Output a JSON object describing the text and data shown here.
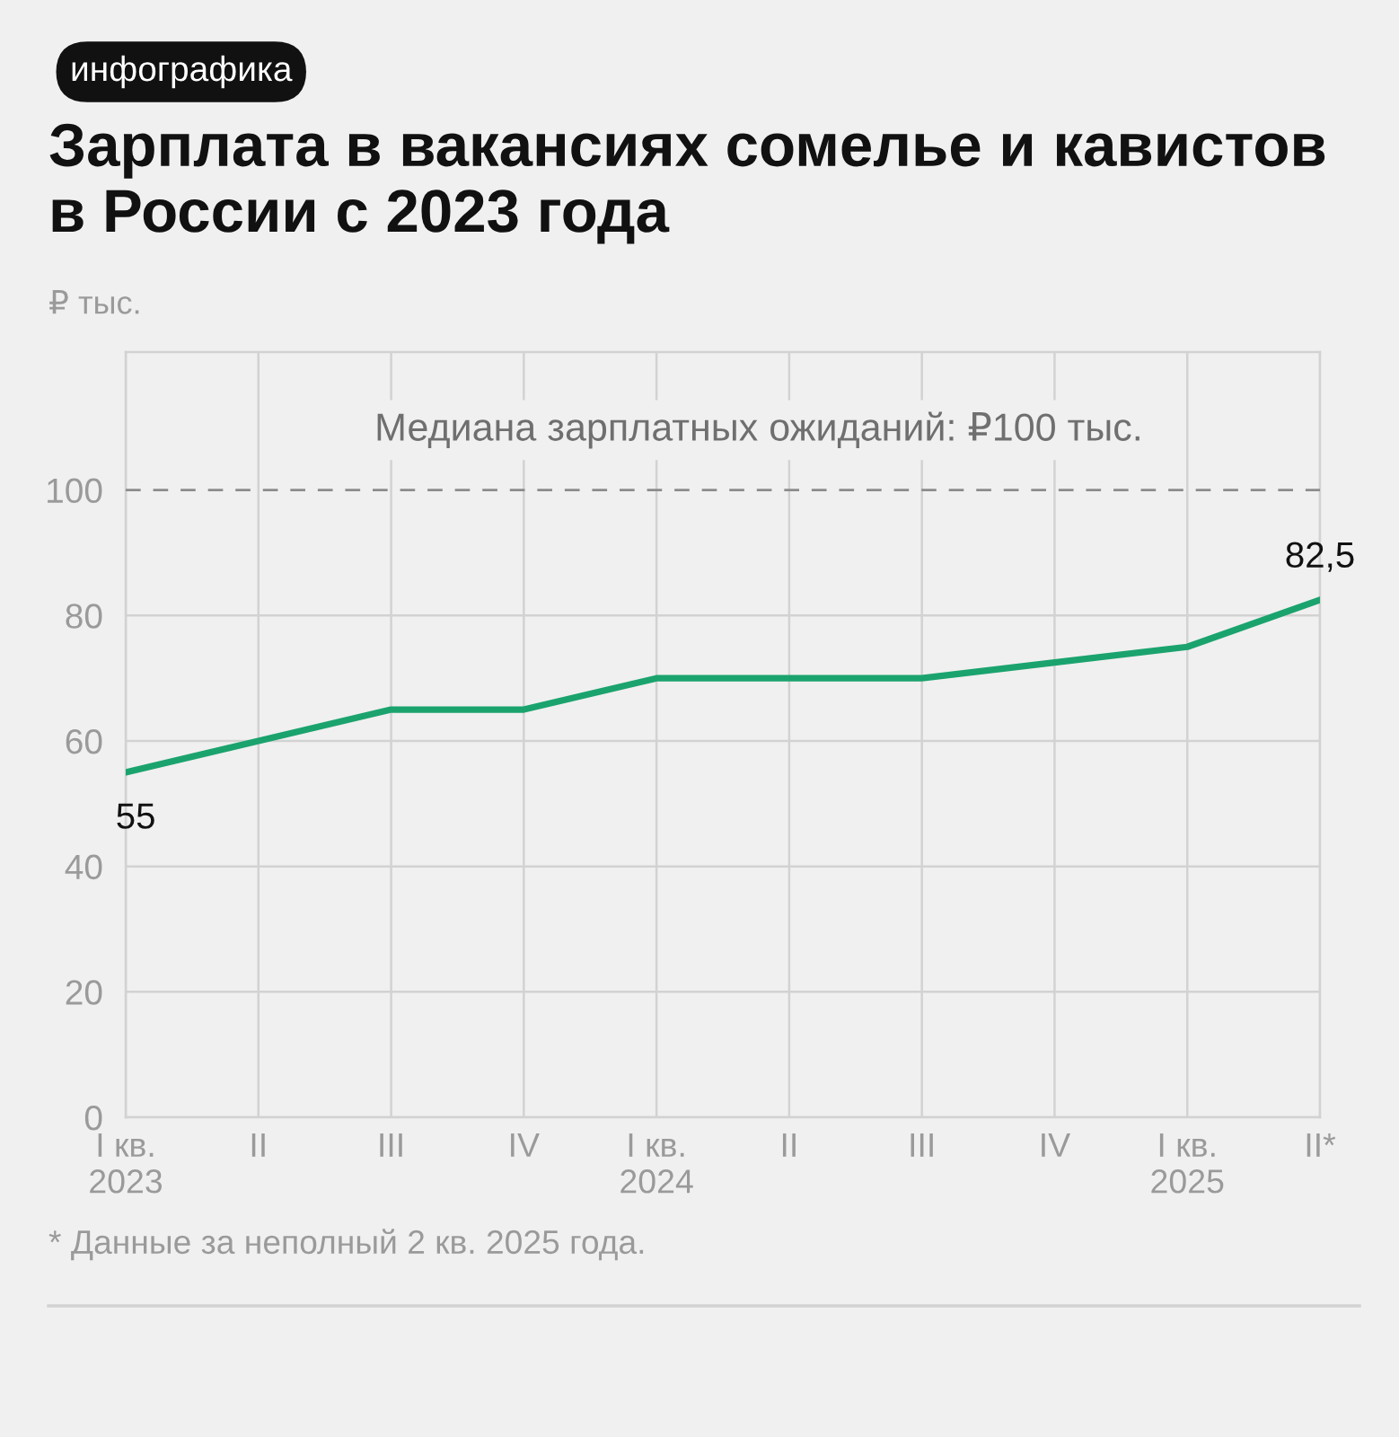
{
  "chart_data": {
    "type": "line",
    "title": "Зарплата в вакансиях сомелье и кавистов\nв России с 2023 года",
    "ylabel": "₽ тыс.",
    "categories": [
      "I кв.\n2023",
      "II",
      "III",
      "IV",
      "I кв.\n2024",
      "II",
      "III",
      "IV",
      "I кв.\n2025",
      "II*"
    ],
    "series": [
      {
        "color": "#1ba36e",
        "values": [
          55,
          60,
          65,
          65,
          70,
          70,
          70,
          72.5,
          75,
          82.5
        ],
        "value_labels": [
          "55",
          null,
          null,
          null,
          null,
          null,
          null,
          null,
          null,
          "82,5"
        ]
      }
    ],
    "ylim": [
      0,
      122
    ],
    "yticks": [
      0,
      20,
      40,
      60,
      80,
      100
    ],
    "grid": true,
    "line_style": "solid",
    "ref_lines": [
      {
        "axis": "y",
        "value": 100,
        "label": "Медиана зарплатных ожиданий: ₽100 тыс.",
        "color": "#8c8c8c",
        "line_style": "dashed"
      }
    ],
    "annotations": [
      "инфографика",
      "* Данные за неполный 2 кв. 2025 года."
    ]
  }
}
